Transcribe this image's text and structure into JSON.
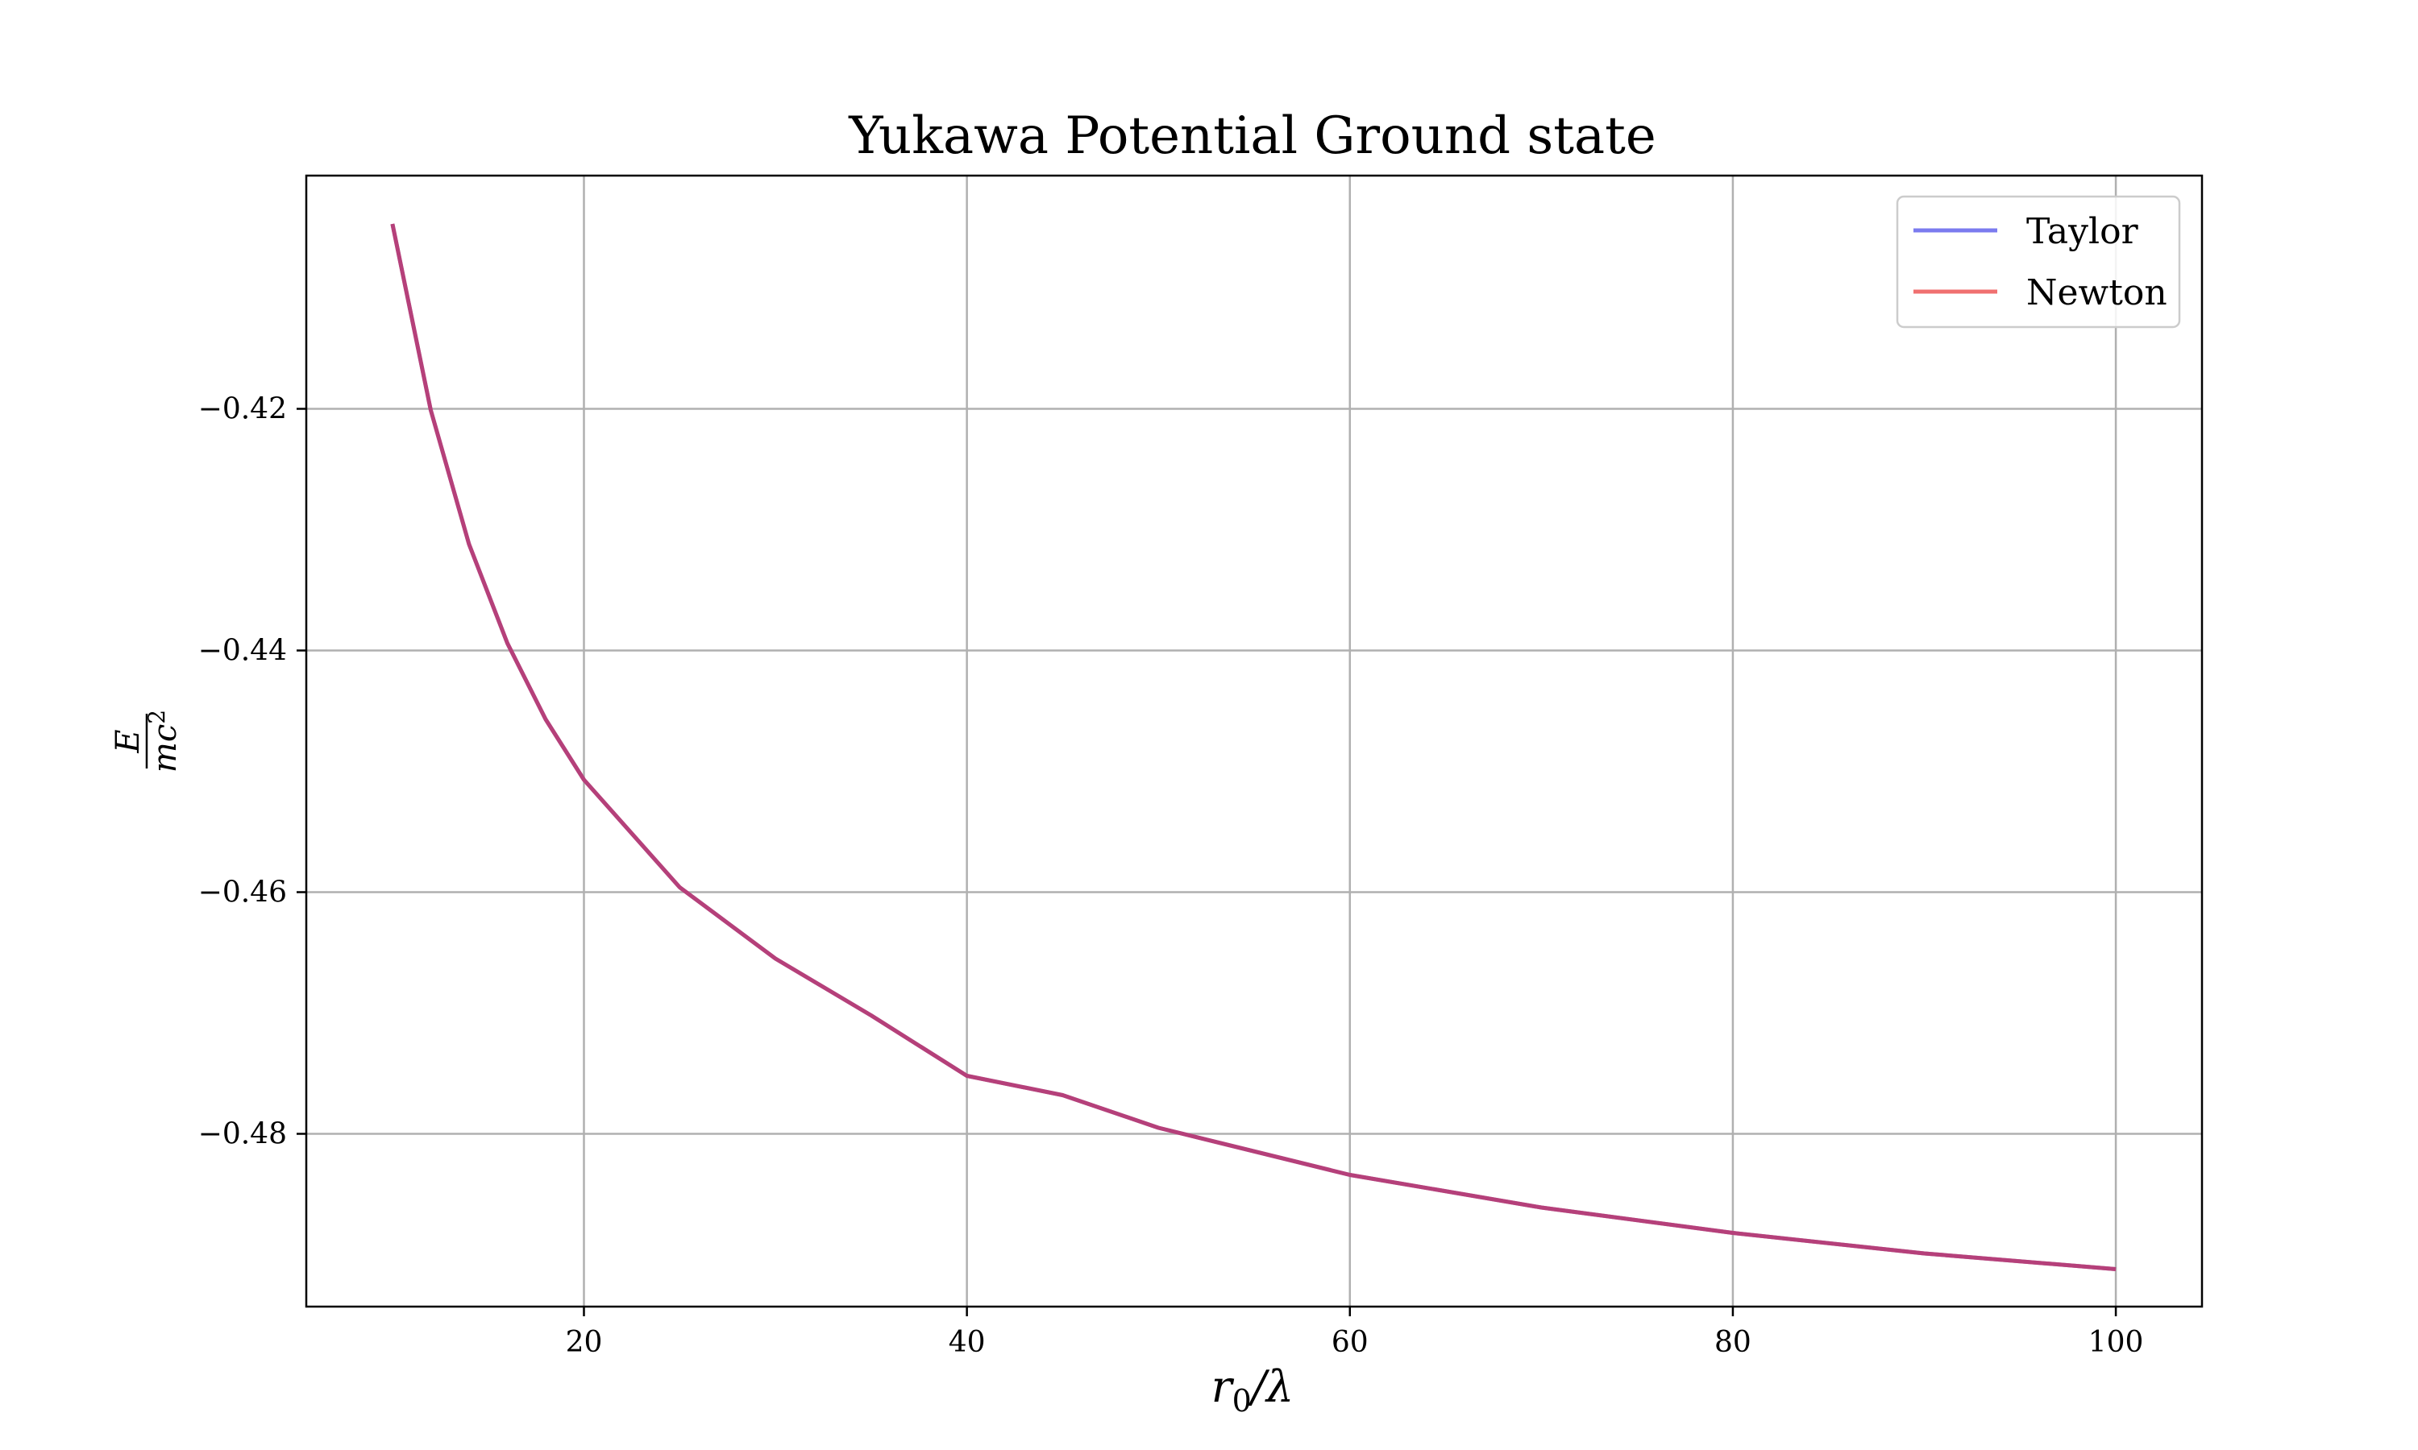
{
  "chart_data": {
    "type": "line",
    "title": "Yukawa Potential Ground state",
    "xlabel": "r_0/λ",
    "ylabel": "E/mc²",
    "xlabel_parts": {
      "var": "r",
      "sub": "0",
      "rest": "/λ"
    },
    "ylabel_parts": {
      "num": "E",
      "den_var": "mc",
      "den_sup": "2"
    },
    "xlim": [
      5.5,
      104.5
    ],
    "ylim": [
      -0.4943,
      -0.4007
    ],
    "x_ticks": [
      {
        "value": 20,
        "label": "20"
      },
      {
        "value": 40,
        "label": "40"
      },
      {
        "value": 60,
        "label": "60"
      },
      {
        "value": 80,
        "label": "80"
      },
      {
        "value": 100,
        "label": "100"
      }
    ],
    "y_ticks": [
      {
        "value": -0.42,
        "label": "−0.42"
      },
      {
        "value": -0.44,
        "label": "−0.44"
      },
      {
        "value": -0.46,
        "label": "−0.46"
      },
      {
        "value": -0.48,
        "label": "−0.48"
      }
    ],
    "grid": true,
    "legend_position": "top-right",
    "series": [
      {
        "name": "Taylor",
        "color": "#7b7bef",
        "x": [
          10,
          12,
          14,
          16,
          18,
          20,
          25,
          30,
          35,
          40,
          45,
          50,
          60,
          70,
          80,
          90,
          100
        ],
        "y": [
          -0.4047,
          -0.4201,
          -0.4312,
          -0.4394,
          -0.4457,
          -0.4507,
          -0.4596,
          -0.4655,
          -0.4702,
          -0.4752,
          -0.4768,
          -0.4795,
          -0.4834,
          -0.4861,
          -0.4882,
          -0.4899,
          -0.4912
        ]
      },
      {
        "name": "Newton",
        "color": "#f07070",
        "x": [
          10,
          12,
          14,
          16,
          18,
          20,
          25,
          30,
          35,
          40,
          45,
          50,
          60,
          70,
          80,
          90,
          100
        ],
        "y": [
          -0.4047,
          -0.4201,
          -0.4312,
          -0.4394,
          -0.4457,
          -0.4507,
          -0.4596,
          -0.4655,
          -0.4702,
          -0.4752,
          -0.4768,
          -0.4795,
          -0.4834,
          -0.4861,
          -0.4882,
          -0.4899,
          -0.4912
        ]
      }
    ],
    "overlap_color": "#b5407a"
  }
}
